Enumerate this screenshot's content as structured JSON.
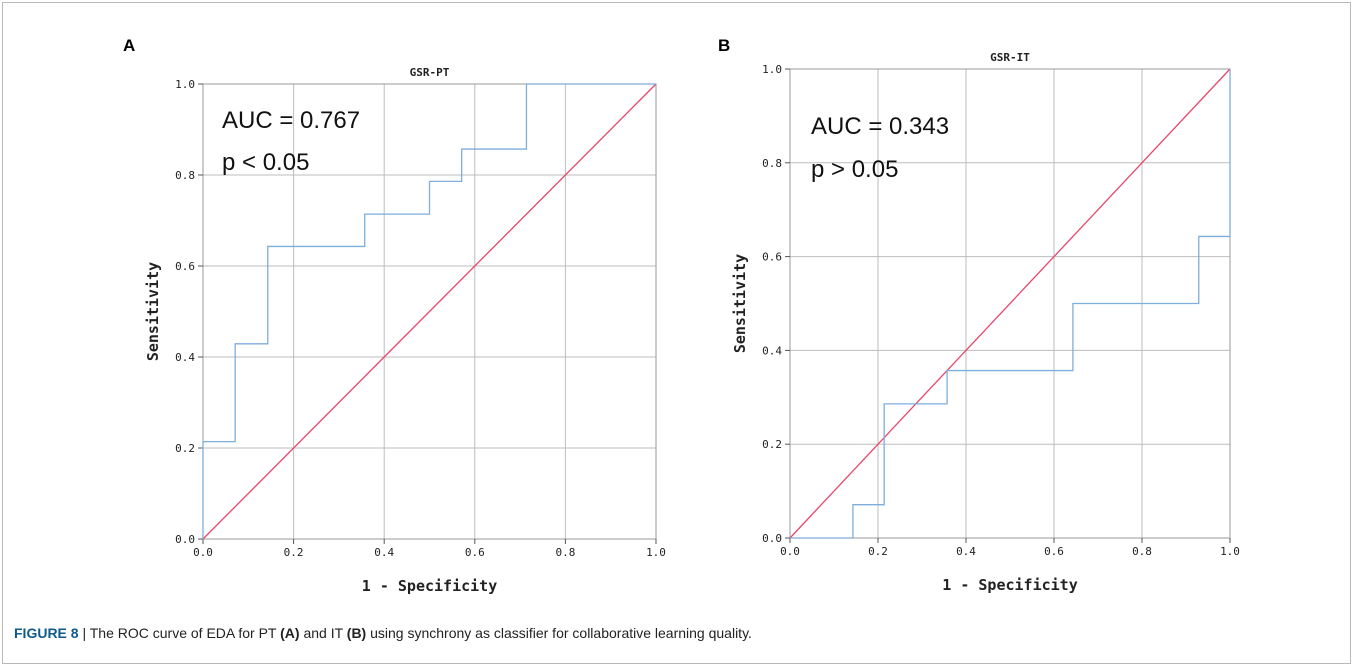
{
  "panels": [
    {
      "letter": "A"
    },
    {
      "letter": "B"
    }
  ],
  "colors": {
    "roc": "#7eaedb",
    "reference": "#e8466a",
    "grid": "#bdbdbd",
    "frame": "#9a9a9a"
  },
  "chart_data": [
    {
      "type": "line",
      "title": "GSR-PT",
      "xlabel": "1 - Specificity",
      "ylabel": "Sensitivity",
      "xlim": [
        0,
        1
      ],
      "ylim": [
        0,
        1
      ],
      "xticks": [
        "0.0",
        "0.2",
        "0.4",
        "0.6",
        "0.8",
        "1.0"
      ],
      "yticks": [
        "0.0",
        "0.2",
        "0.4",
        "0.6",
        "0.8",
        "1.0"
      ],
      "grid": true,
      "annotations": [
        "AUC = 0.767",
        "p < 0.05"
      ],
      "series": [
        {
          "x": [
            0,
            0,
            0.071,
            0.071,
            0.143,
            0.143,
            0.357,
            0.357,
            0.5,
            0.5,
            0.571,
            0.571,
            0.714,
            0.714,
            1.0
          ],
          "y": [
            0,
            0.214,
            0.214,
            0.429,
            0.429,
            0.643,
            0.643,
            0.714,
            0.714,
            0.786,
            0.786,
            0.857,
            0.857,
            1.0,
            1.0
          ]
        },
        {
          "x": [
            0,
            1
          ],
          "y": [
            0,
            1
          ]
        }
      ]
    },
    {
      "type": "line",
      "title": "GSR-IT",
      "xlabel": "1 - Specificity",
      "ylabel": "Sensitivity",
      "xlim": [
        0,
        1
      ],
      "ylim": [
        0,
        1
      ],
      "xticks": [
        "0.0",
        "0.2",
        "0.4",
        "0.6",
        "0.8",
        "1.0"
      ],
      "yticks": [
        "0.0",
        "0.2",
        "0.4",
        "0.6",
        "0.8",
        "1.0"
      ],
      "grid": true,
      "annotations": [
        "AUC = 0.343",
        "p > 0.05"
      ],
      "series": [
        {
          "x": [
            0,
            0.143,
            0.143,
            0.214,
            0.214,
            0.286,
            0.286,
            0.357,
            0.357,
            0.643,
            0.643,
            0.929,
            0.929,
            1.0,
            1.0
          ],
          "y": [
            0,
            0,
            0.071,
            0.071,
            0.286,
            0.286,
            0.286,
            0.286,
            0.357,
            0.357,
            0.5,
            0.5,
            0.643,
            0.643,
            1.0
          ]
        },
        {
          "x": [
            0,
            1
          ],
          "y": [
            0,
            1
          ]
        }
      ]
    }
  ],
  "caption": {
    "label": "FIGURE 8",
    "separator": " | ",
    "text_1": "The ROC curve of EDA for PT ",
    "ref_a": "(A)",
    "text_2": " and IT ",
    "ref_b": "(B)",
    "text_3": " using synchrony as classifier for collaborative learning quality."
  }
}
